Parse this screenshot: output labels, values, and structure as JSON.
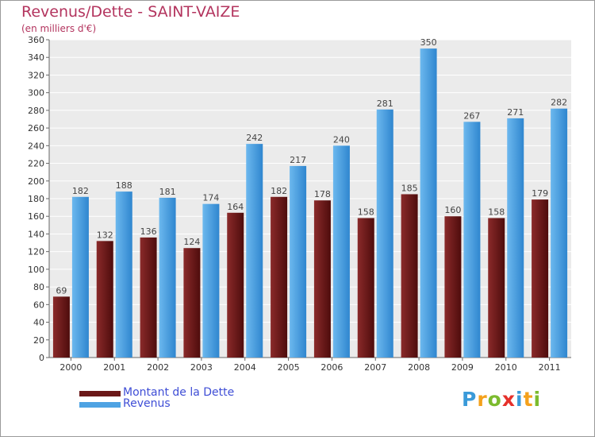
{
  "chart_data": {
    "type": "bar",
    "title": "Revenus/Dette - SAINT-VAIZE",
    "subtitle": "(en milliers d'€)",
    "categories": [
      "2000",
      "2001",
      "2002",
      "2003",
      "2004",
      "2005",
      "2006",
      "2007",
      "2008",
      "2009",
      "2010",
      "2011"
    ],
    "series": [
      {
        "name": "Montant de la Dette",
        "color": "#6b1818",
        "values": [
          69,
          132,
          136,
          124,
          164,
          182,
          178,
          158,
          185,
          160,
          158,
          179
        ]
      },
      {
        "name": "Revenus",
        "color": "#4ea3e3",
        "values": [
          182,
          188,
          181,
          174,
          242,
          217,
          240,
          281,
          350,
          267,
          271,
          282
        ]
      }
    ],
    "ylim": [
      0,
      360
    ],
    "ytick_step": 20,
    "grid": true,
    "xlabel": "",
    "ylabel": "",
    "legend_position": "bottom-left"
  },
  "logo": {
    "letters": [
      "P",
      "r",
      "o",
      "x",
      "i",
      "t",
      "i"
    ],
    "colors": [
      "#3a9ad9",
      "#f4a11c",
      "#7cbb2e",
      "#e5302a",
      "#3a9ad9",
      "#f4a11c",
      "#7cbb2e"
    ]
  }
}
